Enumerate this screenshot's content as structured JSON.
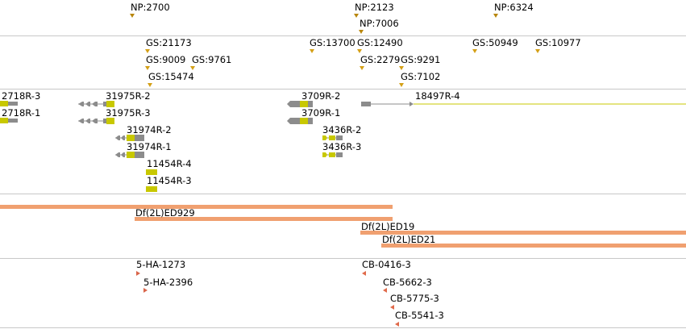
{
  "colors": {
    "divider": "#c8c8c8",
    "marker_np": "#b8860b",
    "marker_gs": "#d4a017",
    "marker_red": "#e06a4a",
    "exon_yellow": "#c8c800",
    "exon_grey": "#8c8c8c",
    "intron": "#8c8c8c",
    "long_line": "#c8c800",
    "deficiency": "#f0a070"
  },
  "tracks": {
    "np": {
      "items": [
        {
          "label": "NP:2700"
        },
        {
          "label": "NP:2123"
        },
        {
          "label": "NP:7006"
        },
        {
          "label": "NP:6324"
        }
      ]
    },
    "gs": {
      "items": [
        {
          "label": "GS:21173"
        },
        {
          "label": "GS:9009"
        },
        {
          "label": "GS:9761"
        },
        {
          "label": "GS:15474"
        },
        {
          "label": "GS:13700"
        },
        {
          "label": "GS:12490"
        },
        {
          "label": "GS:2279"
        },
        {
          "label": "GS:9291"
        },
        {
          "label": "GS:7102"
        },
        {
          "label": "GS:50949"
        },
        {
          "label": "GS:10977"
        }
      ]
    },
    "genes": {
      "items": [
        {
          "label": "2718R-3"
        },
        {
          "label": "2718R-1"
        },
        {
          "label": "31975R-2"
        },
        {
          "label": "31975R-3"
        },
        {
          "label": "31974R-2"
        },
        {
          "label": "31974R-1"
        },
        {
          "label": "11454R-4"
        },
        {
          "label": "11454R-3"
        },
        {
          "label": "3709R-2"
        },
        {
          "label": "3709R-1"
        },
        {
          "label": "3436R-2"
        },
        {
          "label": "3436R-3"
        },
        {
          "label": "18497R-4"
        }
      ]
    },
    "deficiencies": {
      "items": [
        {
          "label": "Df(2L)ED929"
        },
        {
          "label": "Df(2L)ED19"
        },
        {
          "label": "Df(2L)ED21"
        }
      ]
    },
    "hairpins": {
      "items": [
        {
          "label": "5-HA-1273"
        },
        {
          "label": "5-HA-2396"
        },
        {
          "label": "CB-0416-3"
        },
        {
          "label": "CB-5662-3"
        },
        {
          "label": "CB-5775-3"
        },
        {
          "label": "CB-5541-3"
        }
      ]
    }
  }
}
